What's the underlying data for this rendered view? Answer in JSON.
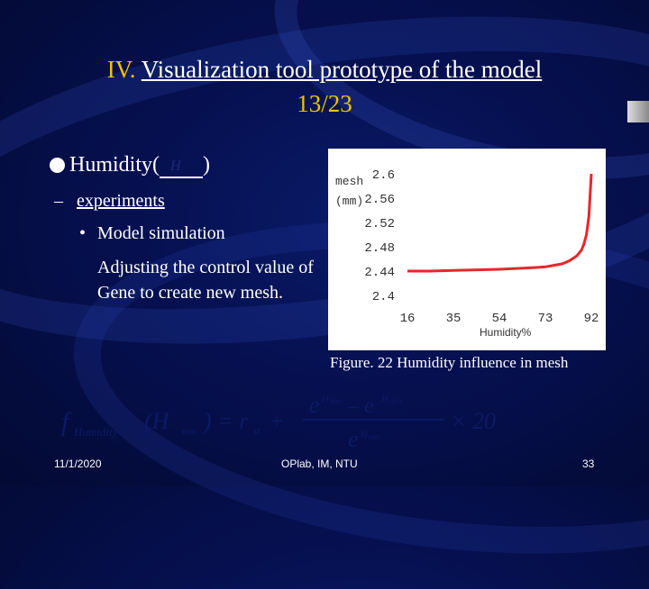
{
  "slide": {
    "title_numeral": "IV.",
    "title_text": "Visualization tool prototype of the model",
    "title_page": "13/23",
    "bullet_main": "Humidity(",
    "bullet_main_close": ")",
    "bullet_sub": "experiments",
    "bullet_sub_dash": "–",
    "bullet_sub2": "Model simulation",
    "bullet_sub2_marker": "•",
    "paragraph": "Adjusting the control value of Gene to create new mesh.",
    "caption": "Figure. 22 Humidity influence in mesh",
    "footer_date": "11/1/2020",
    "footer_org": "OPlab, IM, NTU",
    "footer_page": "33"
  },
  "colors": {
    "title_accent": "#f2c200",
    "background": "#061050",
    "curve": "#e8262a"
  },
  "chart_data": {
    "type": "line",
    "ylabel_line1": "mesh",
    "ylabel_line2": "(mm)",
    "xlabel": "Humidity%",
    "x_ticks": [
      "16",
      "35",
      "54",
      "73",
      "92"
    ],
    "y_ticks": [
      "2.6",
      "2.56",
      "2.52",
      "2.48",
      "2.44",
      "2.4"
    ],
    "xlim": [
      16,
      92
    ],
    "ylim": [
      2.4,
      2.6
    ],
    "series": [
      {
        "x": [
          16,
          25,
          35,
          45,
          54,
          60,
          65,
          70,
          73,
          76,
          80,
          83,
          86,
          88,
          89,
          90,
          91,
          92
        ],
        "values": [
          2.44,
          2.44,
          2.441,
          2.442,
          2.443,
          2.444,
          2.445,
          2.446,
          2.447,
          2.449,
          2.452,
          2.457,
          2.465,
          2.475,
          2.485,
          2.5,
          2.53,
          2.6
        ]
      }
    ]
  }
}
